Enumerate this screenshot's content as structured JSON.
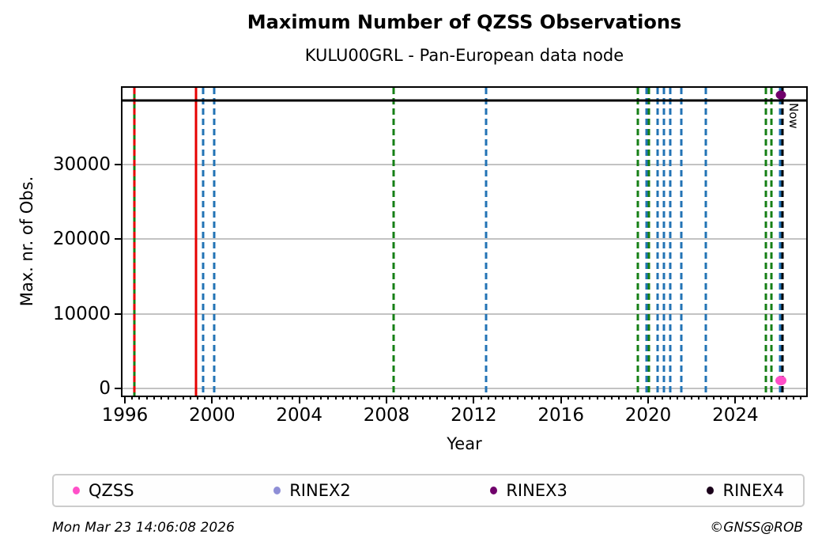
{
  "title": "Maximum Number of QZSS Observations",
  "subtitle": "KULU00GRL - Pan-European data node",
  "footer": {
    "timestamp": "Mon Mar 23 14:06:08 2026",
    "credit": "©GNSS@ROB"
  },
  "chart_data": {
    "type": "scatter",
    "title": "Maximum Number of QZSS Observations",
    "subtitle": "KULU00GRL - Pan-European data node",
    "xlabel": "Year",
    "ylabel": "Max. nr. of Obs.",
    "xlim": [
      1995.89,
      2027.25
    ],
    "ylim": [
      -950,
      40300
    ],
    "xticks": [
      1996,
      2000,
      2004,
      2008,
      2012,
      2016,
      2020,
      2024
    ],
    "x_minor_tick_step_years": 0.3333,
    "yticks": [
      0,
      10000,
      20000,
      30000
    ],
    "grid": "horizontal-only",
    "palette": {
      "green": "#157f15",
      "blue": "#2273b5",
      "red": "#e60000",
      "black": "#000000"
    },
    "hline": {
      "value": 38600,
      "color": "black",
      "style": "solid"
    },
    "event_lines": [
      {
        "year": 1996.43,
        "color": "green",
        "style": "solid"
      },
      {
        "year": 1996.43,
        "color": "red",
        "style": "dashed"
      },
      {
        "year": 1999.25,
        "color": "red",
        "style": "solid"
      },
      {
        "year": 1999.57,
        "color": "blue",
        "style": "dashed"
      },
      {
        "year": 2000.11,
        "color": "blue",
        "style": "dashed"
      },
      {
        "year": 2008.34,
        "color": "green",
        "style": "dashed"
      },
      {
        "year": 2012.57,
        "color": "blue",
        "style": "dashed"
      },
      {
        "year": 2019.53,
        "color": "green",
        "style": "dashed"
      },
      {
        "year": 2019.91,
        "color": "blue",
        "style": "dashed"
      },
      {
        "year": 2020.04,
        "color": "green",
        "style": "dashed"
      },
      {
        "year": 2020.43,
        "color": "blue",
        "style": "dashed"
      },
      {
        "year": 2020.72,
        "color": "blue",
        "style": "dashed"
      },
      {
        "year": 2021.01,
        "color": "blue",
        "style": "dashed"
      },
      {
        "year": 2021.52,
        "color": "blue",
        "style": "dashed"
      },
      {
        "year": 2022.64,
        "color": "blue",
        "style": "dashed"
      },
      {
        "year": 2025.41,
        "color": "green",
        "style": "dashed"
      },
      {
        "year": 2025.67,
        "color": "green",
        "style": "dashed"
      },
      {
        "year": 2026.06,
        "color": "blue",
        "style": "dashed"
      }
    ],
    "now_marker": {
      "year": 2026.17,
      "label": "Now",
      "color": "black",
      "style": "dashed"
    },
    "points": [
      {
        "series": "RINEX3",
        "year": 2026.1,
        "value": 39300,
        "color": "#70006b",
        "w": 13,
        "h": 11
      },
      {
        "series": "QZSS",
        "year": 2026.1,
        "value": 1050,
        "color": "#ff4fc8",
        "w": 14,
        "h": 12
      }
    ],
    "legend": {
      "position": "bottom",
      "entries": [
        {
          "label": "QZSS",
          "color": "#ff4fc8"
        },
        {
          "label": "RINEX2",
          "color": "#8e8ed6"
        },
        {
          "label": "RINEX3",
          "color": "#70006b"
        },
        {
          "label": "RINEX4",
          "color": "#190019"
        }
      ]
    }
  }
}
